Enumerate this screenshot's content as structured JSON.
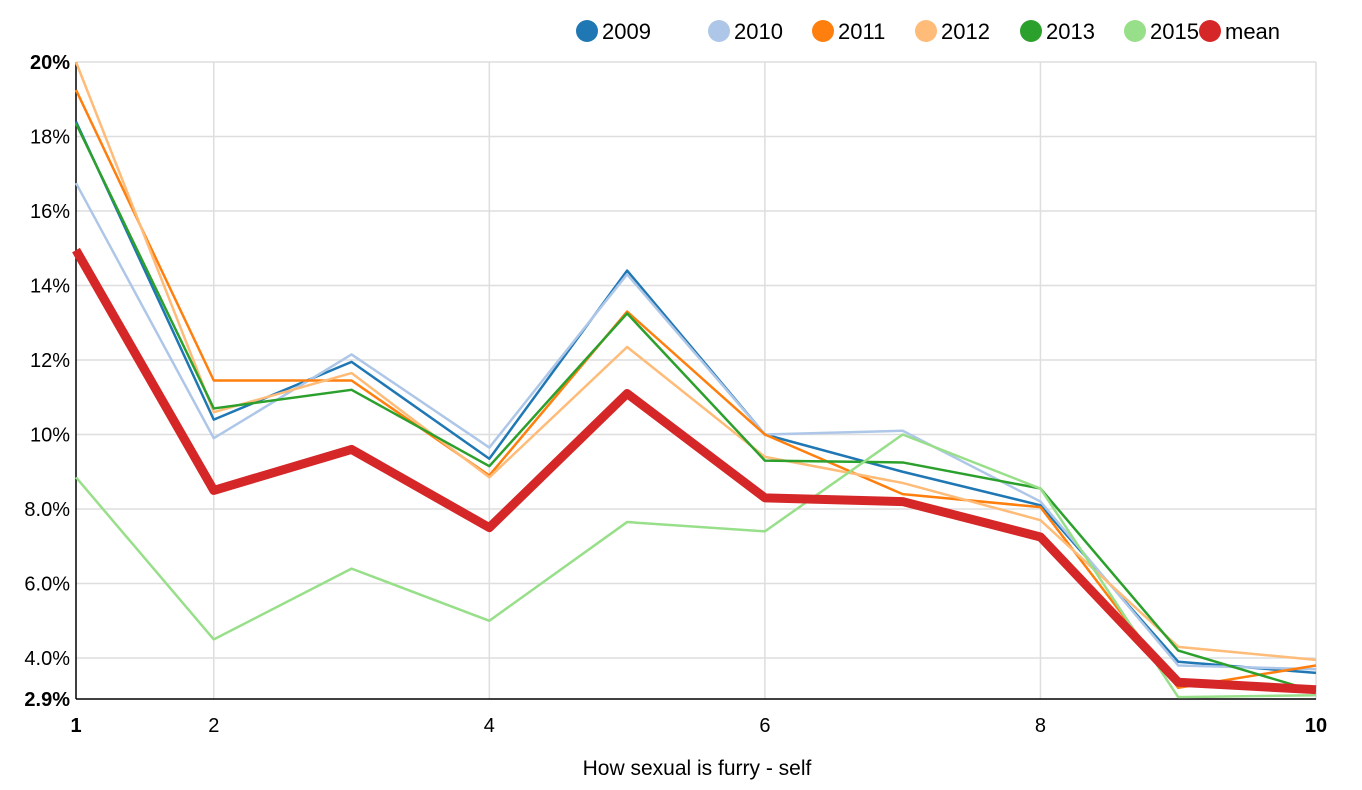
{
  "chart_data": {
    "type": "line",
    "xlabel": "How sexual is furry - self",
    "x": [
      1,
      2,
      3,
      4,
      5,
      6,
      7,
      8,
      9,
      10
    ],
    "xlim": [
      1,
      10
    ],
    "ylim": [
      2.9,
      20
    ],
    "x_ticks": [
      {
        "value": 1,
        "label": "1",
        "bold": true
      },
      {
        "value": 2,
        "label": "2",
        "bold": false
      },
      {
        "value": 4,
        "label": "4",
        "bold": false
      },
      {
        "value": 6,
        "label": "6",
        "bold": false
      },
      {
        "value": 8,
        "label": "8",
        "bold": false
      },
      {
        "value": 10,
        "label": "10",
        "bold": true
      }
    ],
    "y_ticks": [
      {
        "value": 2.9,
        "label": "2.9%",
        "bold": true
      },
      {
        "value": 4,
        "label": "4.0%",
        "bold": false
      },
      {
        "value": 6,
        "label": "6.0%",
        "bold": false
      },
      {
        "value": 8,
        "label": "8.0%",
        "bold": false
      },
      {
        "value": 10,
        "label": "10%",
        "bold": false
      },
      {
        "value": 12,
        "label": "12%",
        "bold": false
      },
      {
        "value": 14,
        "label": "14%",
        "bold": false
      },
      {
        "value": 16,
        "label": "16%",
        "bold": false
      },
      {
        "value": 18,
        "label": "18%",
        "bold": false
      },
      {
        "value": 20,
        "label": "20%",
        "bold": true
      }
    ],
    "grid": true,
    "legend_position": "top-right",
    "series": [
      {
        "name": "2009",
        "color": "#1f77b4",
        "values": [
          18.4,
          10.4,
          11.95,
          9.35,
          14.4,
          10.0,
          9.0,
          8.1,
          3.9,
          3.6
        ],
        "emphasis": false
      },
      {
        "name": "2010",
        "color": "#aec7e8",
        "values": [
          16.75,
          9.9,
          12.15,
          9.65,
          14.3,
          10.0,
          10.1,
          8.2,
          3.8,
          3.7
        ],
        "emphasis": false
      },
      {
        "name": "2011",
        "color": "#ff7f0e",
        "values": [
          19.25,
          11.45,
          11.45,
          8.9,
          13.3,
          10.0,
          8.4,
          8.05,
          3.2,
          3.8
        ],
        "emphasis": false
      },
      {
        "name": "2012",
        "color": "#ffbb78",
        "values": [
          20.0,
          10.6,
          11.65,
          8.85,
          12.35,
          9.4,
          8.7,
          7.7,
          4.3,
          3.95
        ],
        "emphasis": false
      },
      {
        "name": "2013",
        "color": "#2ca02c",
        "values": [
          18.35,
          10.7,
          11.2,
          9.15,
          13.25,
          9.3,
          9.25,
          8.55,
          4.2,
          3.1
        ],
        "emphasis": false
      },
      {
        "name": "2015",
        "color": "#98df8a",
        "values": [
          8.85,
          4.5,
          6.4,
          5.0,
          7.65,
          7.4,
          10.0,
          8.55,
          2.95,
          3.0
        ],
        "emphasis": false
      },
      {
        "name": "mean",
        "color": "#d62728",
        "values": [
          14.95,
          8.5,
          9.6,
          7.5,
          11.1,
          8.3,
          8.2,
          7.25,
          3.35,
          3.15
        ],
        "emphasis": true
      }
    ]
  }
}
